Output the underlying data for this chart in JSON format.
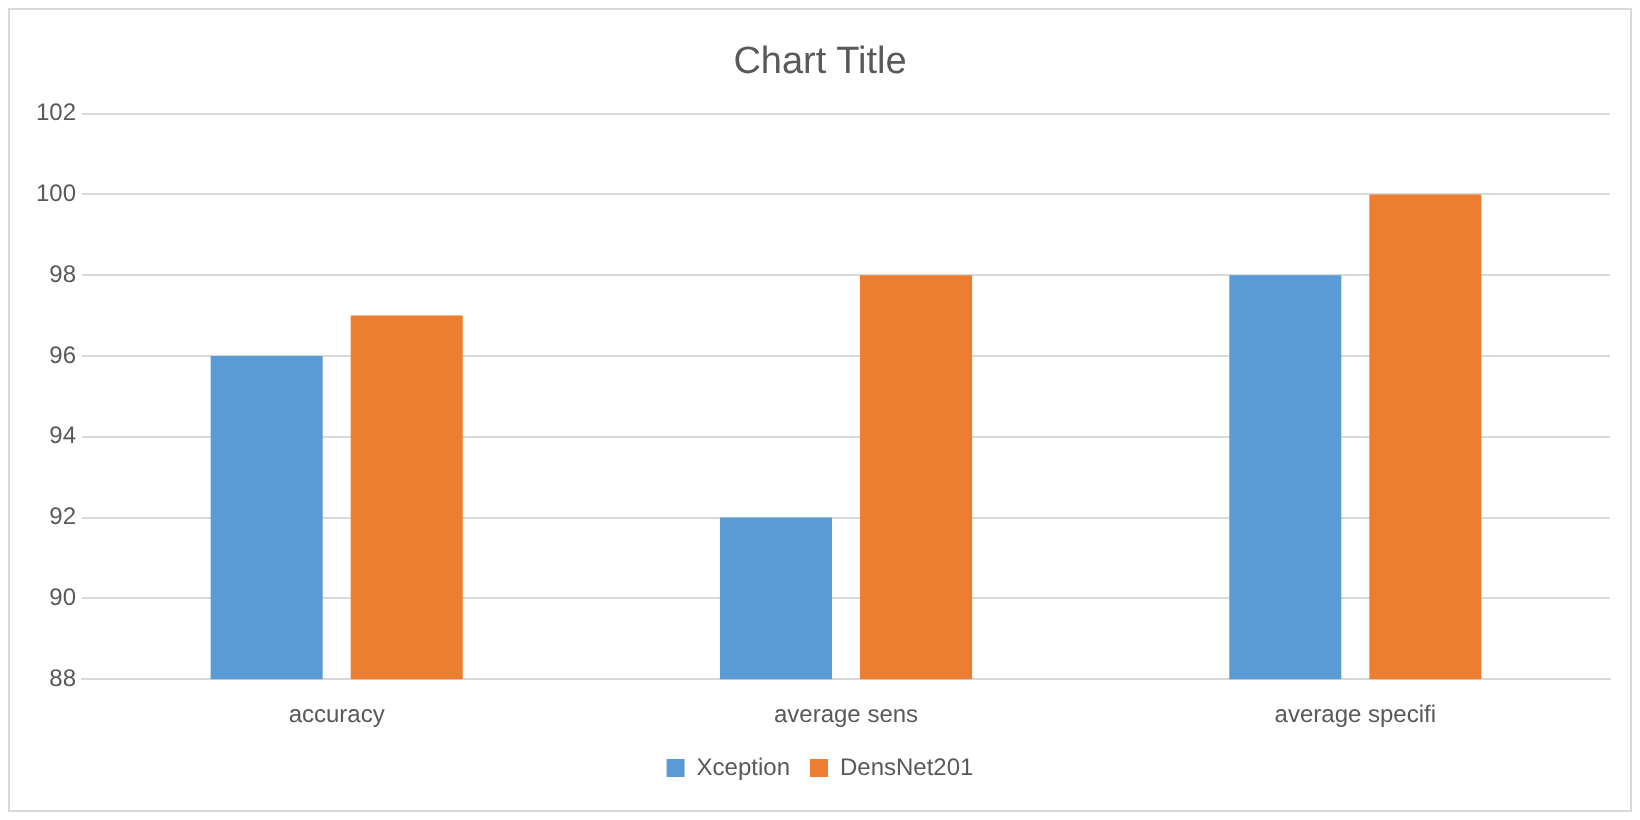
{
  "chart_data": {
    "type": "bar",
    "title": "Chart Title",
    "categories": [
      "accuracy",
      "average sens",
      "average specifi"
    ],
    "series": [
      {
        "name": "Xception",
        "color": "#5b9bd5",
        "values": [
          96,
          92,
          98
        ]
      },
      {
        "name": "DensNet201",
        "color": "#ed7d31",
        "values": [
          97,
          98,
          100
        ]
      }
    ],
    "ylim": [
      88,
      102
    ],
    "yticks": [
      88,
      90,
      92,
      94,
      96,
      98,
      100,
      102
    ],
    "grid": "y",
    "legend": "bottom"
  }
}
